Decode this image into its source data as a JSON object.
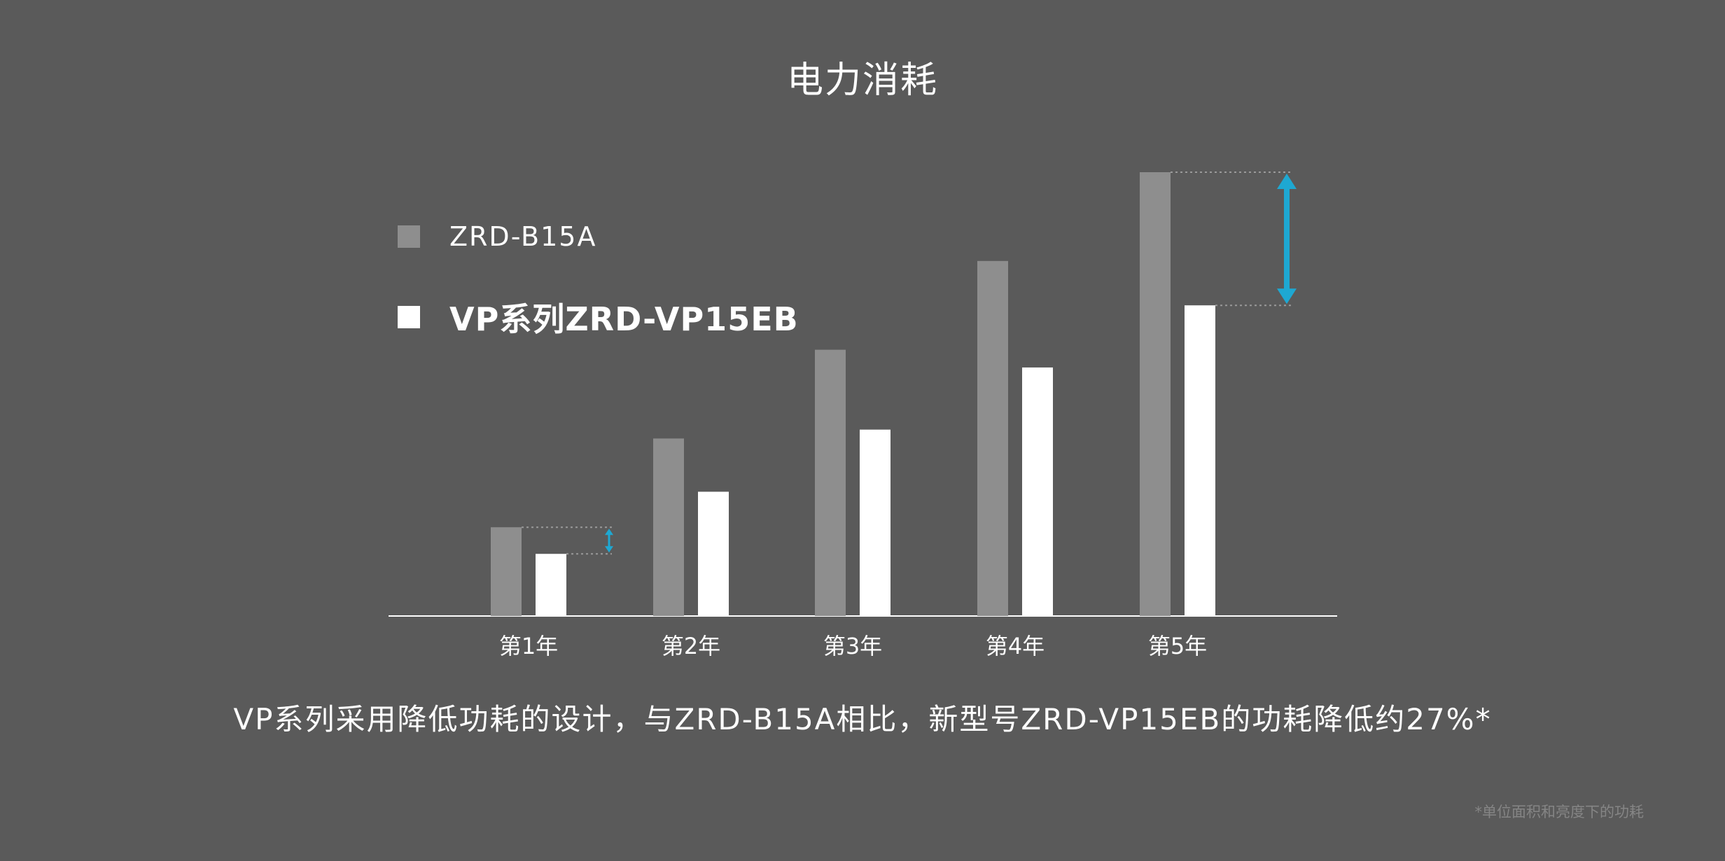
{
  "colors": {
    "background": "#5a5a5a",
    "series_old": "#8e8e8e",
    "series_new": "#ffffff",
    "arrow": "#1ea8d2",
    "axis": "#ffffff",
    "guide": "#9a9a9a"
  },
  "caption": "VP系列采用降低功耗的设计，与ZRD-B15A相比，新型号ZRD-VP15EB的功耗降低约27%*",
  "footnote": "*单位面积和亮度下的功耗",
  "chart_data": {
    "type": "bar",
    "title": "电力消耗",
    "categories": [
      "第1年",
      "第2年",
      "第3年",
      "第4年",
      "第5年"
    ],
    "series": [
      {
        "name": "ZRD-B15A",
        "values": [
          20,
          40,
          60,
          80,
          100
        ]
      },
      {
        "name": "VP系列ZRD-VP15EB",
        "values": [
          14,
          28,
          42,
          56,
          70
        ]
      }
    ],
    "ylim": [
      0,
      100
    ],
    "legend": "top-left",
    "grid": false,
    "annotations": [
      {
        "type": "difference-arrow",
        "category": "第1年",
        "size": "small"
      },
      {
        "type": "difference-arrow",
        "category": "第5年",
        "size": "large"
      }
    ]
  }
}
